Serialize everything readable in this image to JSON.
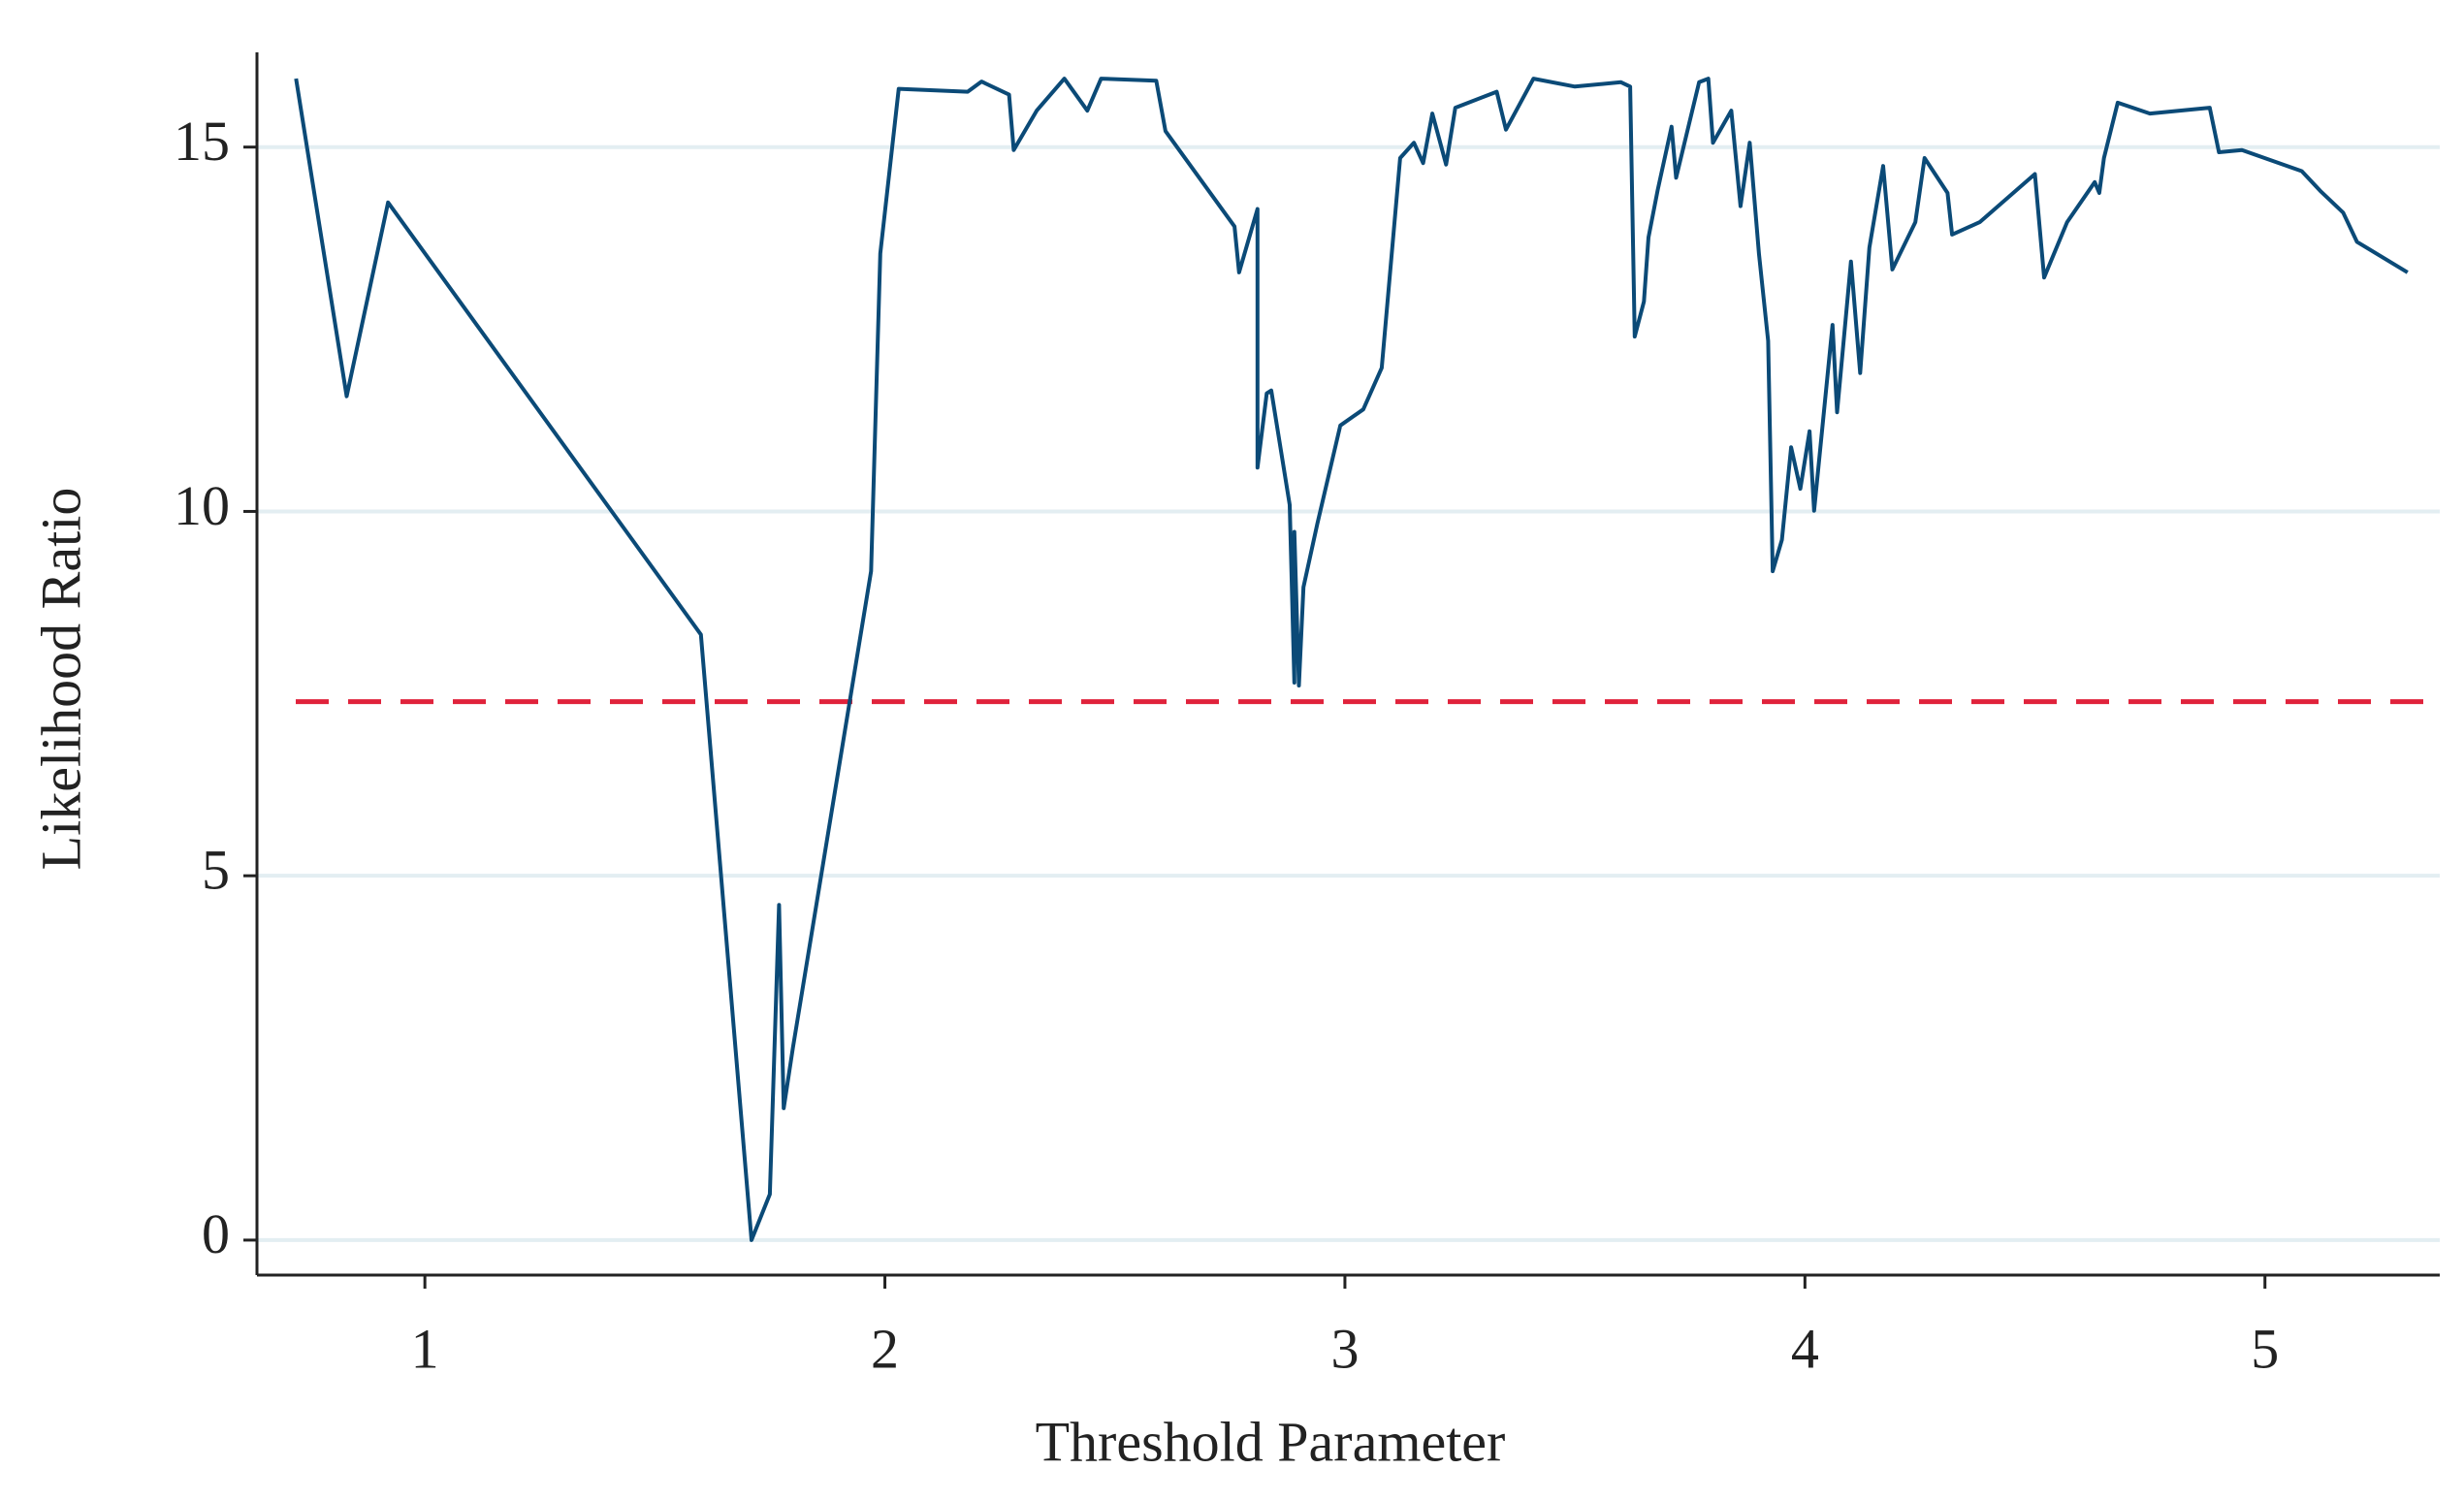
{
  "chart_data": {
    "type": "line",
    "xlabel": "Threshold Parameter",
    "ylabel": "Likelihood Ratio",
    "x": [
      0.72,
      0.83,
      0.92,
      1.6,
      1.71,
      1.75,
      1.77,
      1.78,
      1.8,
      1.97,
      1.99,
      2.03,
      2.18,
      2.21,
      2.27,
      2.28,
      2.33,
      2.39,
      2.44,
      2.47,
      2.59,
      2.61,
      2.76,
      2.77,
      2.81,
      2.81,
      2.83,
      2.84,
      2.88,
      2.89,
      2.89,
      2.9,
      2.91,
      2.94,
      2.99,
      3.04,
      3.08,
      3.12,
      3.15,
      3.17,
      3.19,
      3.22,
      3.24,
      3.33,
      3.35,
      3.41,
      3.5,
      3.6,
      3.62,
      3.63,
      3.65,
      3.66,
      3.68,
      3.71,
      3.72,
      3.77,
      3.79,
      3.8,
      3.84,
      3.86,
      3.88,
      3.9,
      3.92,
      3.93,
      3.95,
      3.97,
      3.99,
      4.01,
      4.02,
      4.06,
      4.07,
      4.1,
      4.12,
      4.14,
      4.17,
      4.19,
      4.24,
      4.26,
      4.31,
      4.32,
      4.38,
      4.5,
      4.52,
      4.57,
      4.63,
      4.64,
      4.65,
      4.68,
      4.75,
      4.88,
      4.9,
      4.95,
      5.08,
      5.12,
      5.17,
      5.2,
      5.31
    ],
    "series": [
      {
        "color": "#0b4a77",
        "values": [
          15.94,
          11.58,
          14.24,
          8.31,
          0,
          0.63,
          4.6,
          1.81,
          2.64,
          9.18,
          13.54,
          15.8,
          15.76,
          15.9,
          15.72,
          14.96,
          15.5,
          15.94,
          15.5,
          15.94,
          15.91,
          15.22,
          13.91,
          13.28,
          14.15,
          10.6,
          11.62,
          11.66,
          10.09,
          7.65,
          9.72,
          7.61,
          8.96,
          9.83,
          11.18,
          11.4,
          11.97,
          14.85,
          15.06,
          14.78,
          15.46,
          14.76,
          15.54,
          15.76,
          15.24,
          15.94,
          15.83,
          15.89,
          15.83,
          12.4,
          12.88,
          13.76,
          14.41,
          15.28,
          14.58,
          15.89,
          15.94,
          15.06,
          15.5,
          14.19,
          15.06,
          13.54,
          12.34,
          9.18,
          9.61,
          10.88,
          10.31,
          11.1,
          10.01,
          12.56,
          11.36,
          13.43,
          11.9,
          13.62,
          14.74,
          13.32,
          13.97,
          14.85,
          14.37,
          13.8,
          13.97,
          14.63,
          13.21,
          13.97,
          14.52,
          14.37,
          14.85,
          15.61,
          15.46,
          15.54,
          14.93,
          14.96,
          14.67,
          14.4,
          14.1,
          13.7,
          13.28
        ]
      }
    ],
    "hline": {
      "value": 7.39,
      "color": "#e0223b"
    },
    "xlim": [
      0.635,
      5.38
    ],
    "ylim": [
      -0.48,
      16.3
    ],
    "xticks": [
      1,
      2,
      3,
      4,
      5
    ],
    "yticks": [
      0,
      5,
      10,
      15
    ],
    "grid": true
  }
}
